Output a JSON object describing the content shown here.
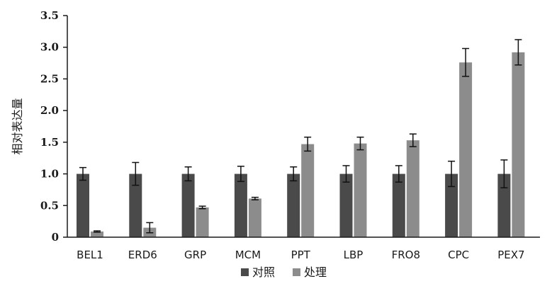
{
  "chart_data": {
    "type": "bar",
    "title": "",
    "xlabel": "",
    "ylabel": "相对表达量",
    "ylim": [
      0,
      3.5
    ],
    "yticks": [
      0,
      0.5,
      1.0,
      1.5,
      2.0,
      2.5,
      3.0,
      3.5
    ],
    "ytick_labels": [
      "0",
      "0.5",
      "1.0",
      "1.5",
      "2.0",
      "2.5",
      "3.0",
      "3.5"
    ],
    "categories": [
      "BEL1",
      "ERD6",
      "GRP",
      "MCM",
      "PPT",
      "LBP",
      "FRO8",
      "CPC",
      "PEX7"
    ],
    "series": [
      {
        "name": "对照",
        "color": "#4a4a4a",
        "values": [
          1.0,
          1.0,
          1.0,
          1.0,
          1.0,
          1.0,
          1.0,
          1.0,
          1.0
        ],
        "errors": [
          0.1,
          0.18,
          0.11,
          0.12,
          0.11,
          0.13,
          0.13,
          0.2,
          0.22
        ]
      },
      {
        "name": "处理",
        "color": "#8c8c8c",
        "values": [
          0.09,
          0.15,
          0.47,
          0.61,
          1.47,
          1.48,
          1.53,
          2.76,
          2.92
        ],
        "errors": [
          0.01,
          0.08,
          0.02,
          0.02,
          0.11,
          0.1,
          0.1,
          0.22,
          0.2
        ]
      }
    ],
    "grid": false,
    "legend_position": "bottom-center"
  }
}
